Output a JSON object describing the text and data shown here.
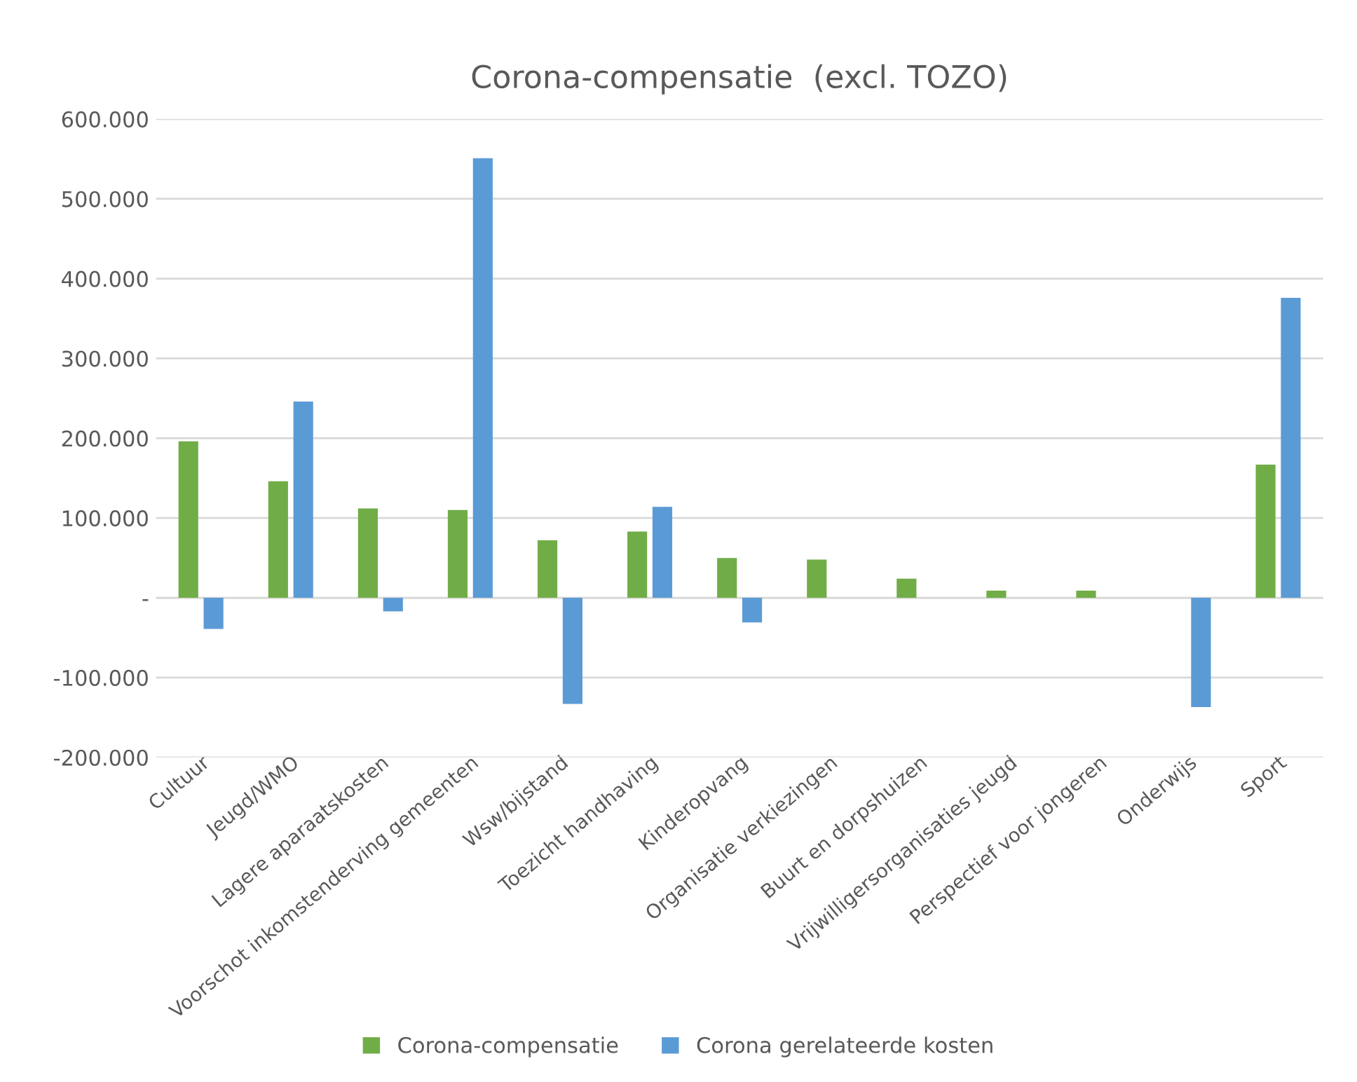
{
  "chart_data": {
    "type": "bar",
    "title": "Corona-compensatie  (excl. TOZO)",
    "categories": [
      "Cultuur",
      "Jeugd/WMO",
      "Lagere aparaatskosten",
      "Voorschot inkomstenderving gemeenten",
      "Wsw/bijstand",
      "Toezicht handhaving",
      "Kinderopvang",
      "Organisatie verkiezingen",
      "Buurt en dorpshuizen",
      "Vrijwilligersorganisaties jeugd",
      "Perspectief voor jongeren",
      "Onderwijs",
      "Sport"
    ],
    "series": [
      {
        "name": "Corona-compensatie",
        "color": "#70ad47",
        "values": [
          196000,
          146000,
          112000,
          110000,
          72000,
          83000,
          50000,
          48000,
          24000,
          9000,
          9000,
          null,
          167000
        ]
      },
      {
        "name": "Corona gerelateerde kosten",
        "color": "#5b9bd5",
        "values": [
          -39000,
          246000,
          -17000,
          551000,
          -133000,
          114000,
          -31000,
          null,
          null,
          null,
          null,
          -137000,
          376000
        ]
      }
    ],
    "ylim": [
      -200000,
      600000
    ],
    "yticks": [
      {
        "value": -200000,
        "label": "-200.000"
      },
      {
        "value": -100000,
        "label": "-100.000"
      },
      {
        "value": 0,
        "label": "-"
      },
      {
        "value": 100000,
        "label": "100.000"
      },
      {
        "value": 200000,
        "label": "200.000"
      },
      {
        "value": 300000,
        "label": "300.000"
      },
      {
        "value": 400000,
        "label": "400.000"
      },
      {
        "value": 500000,
        "label": "500.000"
      },
      {
        "value": 600000,
        "label": "600.000"
      }
    ],
    "grid": "y",
    "legend": "bottom"
  }
}
